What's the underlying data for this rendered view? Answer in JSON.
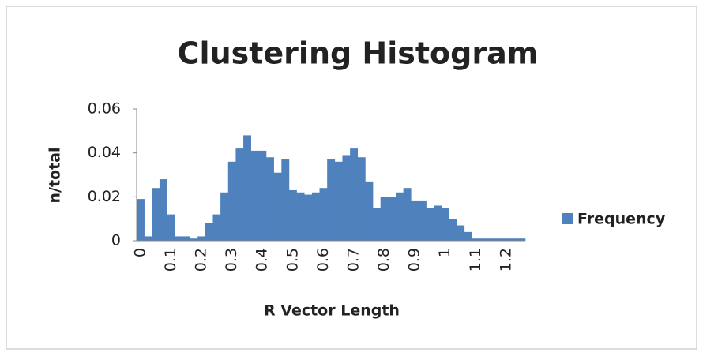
{
  "chart_data": {
    "type": "bar",
    "title": "Clustering Histogram",
    "x_label": "R Vector Length",
    "y_label": "n/total",
    "categories": [
      "0",
      null,
      null,
      null,
      "0.1",
      null,
      null,
      null,
      "0.2",
      null,
      null,
      null,
      "0.3",
      null,
      null,
      null,
      "0.4",
      null,
      null,
      null,
      "0.5",
      null,
      null,
      null,
      "0.6",
      null,
      null,
      null,
      "0.7",
      null,
      null,
      null,
      "0.8",
      null,
      null,
      null,
      "0.9",
      null,
      null,
      null,
      "1",
      null,
      null,
      null,
      "1.1",
      null,
      null,
      null,
      "1.2",
      null,
      null
    ],
    "series": [
      {
        "name": "Frequency",
        "color": "#4f81bd",
        "values": [
          0.019,
          0.002,
          0.024,
          0.028,
          0.012,
          0.002,
          0.002,
          0.001,
          0.002,
          0.008,
          0.012,
          0.022,
          0.036,
          0.042,
          0.048,
          0.041,
          0.041,
          0.038,
          0.031,
          0.037,
          0.023,
          0.022,
          0.021,
          0.022,
          0.024,
          0.037,
          0.036,
          0.039,
          0.042,
          0.038,
          0.027,
          0.015,
          0.02,
          0.02,
          0.022,
          0.024,
          0.018,
          0.018,
          0.015,
          0.016,
          0.015,
          0.01,
          0.007,
          0.004,
          0.001,
          0.001,
          0.001,
          0.001,
          0.001,
          0.001,
          0.001
        ]
      }
    ],
    "ylim": [
      0,
      0.06
    ],
    "yticks": [
      0,
      0.02,
      0.04,
      0.06
    ],
    "grid": false,
    "legend": "right"
  }
}
